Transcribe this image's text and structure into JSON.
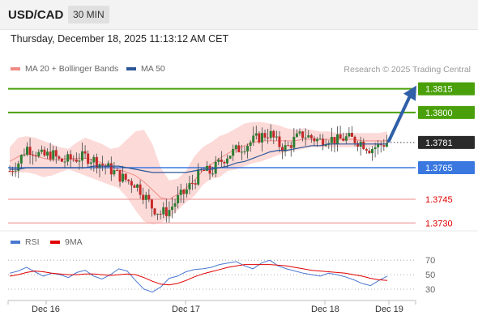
{
  "header": {
    "pair": "USD/CAD",
    "timeframe": "30 MIN"
  },
  "datetime": "Thursday, December 18, 2025 11:13:12 AM CET",
  "legend": [
    {
      "label": "MA 20 + Bollinger Bands",
      "color": "#f28b86"
    },
    {
      "label": "MA 50",
      "color": "#2b5797"
    }
  ],
  "credit": "Research © 2025 Trading Central",
  "rsi_legend": [
    {
      "label": "RSI",
      "color": "#4a78d0"
    },
    {
      "label": "9MA",
      "color": "#e00000"
    }
  ],
  "chart_data": {
    "type": "candlestick",
    "price_axis": {
      "min": 1.3725,
      "max": 1.3822
    },
    "levels": [
      {
        "label": "1.3815",
        "value": 1.3815,
        "role": "target",
        "color": "#4aa00a"
      },
      {
        "label": "1.3800",
        "value": 1.38,
        "role": "resistance",
        "color": "#4aa00a"
      },
      {
        "label": "1.3781",
        "value": 1.3781,
        "role": "last",
        "color": "#222222"
      },
      {
        "label": "1.3765",
        "value": 1.3765,
        "role": "pivot",
        "color": "#3a78e0"
      },
      {
        "label": "1.3745",
        "value": 1.3745,
        "role": "support",
        "color": "#e00000"
      },
      {
        "label": "1.3730",
        "value": 1.373,
        "role": "support",
        "color": "#e00000"
      }
    ],
    "close_path": [
      1.3763,
      1.3768,
      1.3778,
      1.3775,
      1.3772,
      1.3774,
      1.3769,
      1.377,
      1.3771,
      1.3772,
      1.377,
      1.3767,
      1.3764,
      1.376,
      1.3757,
      1.3755,
      1.3748,
      1.374,
      1.3736,
      1.3738,
      1.3745,
      1.375,
      1.3757,
      1.3763,
      1.3762,
      1.3768,
      1.3773,
      1.3776,
      1.3779,
      1.3782,
      1.3785,
      1.3787,
      1.378,
      1.3777,
      1.3783,
      1.3786,
      1.3784,
      1.3782,
      1.3784,
      1.3782,
      1.3784,
      1.3783,
      1.3781,
      1.3777,
      1.3779,
      1.3781
    ],
    "bollinger": {
      "upper": [
        1.3778,
        1.3784,
        1.3785,
        1.3784,
        1.3782,
        1.378,
        1.3778,
        1.3777,
        1.3781,
        1.3784,
        1.3782,
        1.378,
        1.3777,
        1.3778,
        1.3783,
        1.3788,
        1.3789,
        1.378,
        1.3765,
        1.3757,
        1.3758,
        1.3763,
        1.3772,
        1.3778,
        1.3781,
        1.3785,
        1.3787,
        1.379,
        1.3793,
        1.3794,
        1.3794,
        1.3793,
        1.3792,
        1.379,
        1.3789,
        1.379,
        1.3789,
        1.3788,
        1.3788,
        1.3787,
        1.3787,
        1.3787,
        1.3787,
        1.3787,
        1.3787,
        1.3788
      ],
      "lower": [
        1.376,
        1.3762,
        1.3762,
        1.3761,
        1.3759,
        1.376,
        1.3762,
        1.3764,
        1.3762,
        1.376,
        1.3758,
        1.3756,
        1.3754,
        1.3752,
        1.3746,
        1.3738,
        1.3731,
        1.3729,
        1.373,
        1.3733,
        1.3738,
        1.3743,
        1.3747,
        1.3754,
        1.3758,
        1.3759,
        1.3763,
        1.3764,
        1.3766,
        1.3768,
        1.3769,
        1.3771,
        1.3773,
        1.3775,
        1.3776,
        1.3777,
        1.3778,
        1.3778,
        1.3778,
        1.3778,
        1.3778,
        1.3778,
        1.3778,
        1.3778,
        1.3779,
        1.378
      ],
      "ma20": [
        1.3769,
        1.3772,
        1.3774,
        1.3773,
        1.3771,
        1.377,
        1.377,
        1.3771,
        1.3771,
        1.3771,
        1.377,
        1.3768,
        1.3766,
        1.3764,
        1.3762,
        1.376,
        1.3756,
        1.3751,
        1.3746,
        1.3745,
        1.3748,
        1.3752,
        1.3757,
        1.3763,
        1.3767,
        1.3771,
        1.3774,
        1.3777,
        1.3779,
        1.3781,
        1.3782,
        1.3782,
        1.3782,
        1.3782,
        1.3782,
        1.3783,
        1.3783,
        1.3783,
        1.3783,
        1.3783,
        1.3783,
        1.3783,
        1.3782,
        1.3782,
        1.3782,
        1.3782
      ]
    },
    "ma50": [
      1.3764,
      1.3764,
      1.3765,
      1.3765,
      1.3765,
      1.3765,
      1.3765,
      1.3765,
      1.3765,
      1.3765,
      1.3766,
      1.3766,
      1.3766,
      1.3766,
      1.3765,
      1.3764,
      1.3763,
      1.3762,
      1.3762,
      1.3762,
      1.3762,
      1.3762,
      1.3763,
      1.3764,
      1.3764,
      1.3765,
      1.3766,
      1.3768,
      1.3769,
      1.3771,
      1.3773,
      1.3775,
      1.3776,
      1.3776,
      1.3777,
      1.3778,
      1.3779,
      1.3779,
      1.378,
      1.378,
      1.378,
      1.378,
      1.378,
      1.378,
      1.378,
      1.378
    ],
    "forecast_target": 1.3815,
    "rsi_axis": {
      "min": 20,
      "max": 78,
      "ticks": [
        70,
        50,
        30
      ]
    },
    "rsi": [
      52,
      55,
      60,
      54,
      48,
      52,
      50,
      46,
      53,
      56,
      48,
      44,
      50,
      58,
      55,
      42,
      30,
      26,
      33,
      45,
      48,
      54,
      57,
      58,
      60,
      64,
      66,
      68,
      62,
      58,
      66,
      70,
      62,
      58,
      55,
      52,
      50,
      48,
      52,
      50,
      47,
      43,
      38,
      35,
      42,
      48
    ],
    "rsi_ma": [
      48,
      50,
      53,
      55,
      54,
      52,
      51,
      50,
      50,
      51,
      51,
      50,
      49,
      50,
      51,
      50,
      46,
      41,
      37,
      36,
      38,
      42,
      47,
      51,
      54,
      57,
      60,
      62,
      64,
      64,
      64,
      64,
      63,
      62,
      60,
      58,
      56,
      55,
      54,
      53,
      52,
      50,
      48,
      45,
      43,
      42
    ],
    "x_labels": [
      "Dec 16",
      "Dec 17",
      "Dec 18",
      "Dec 19"
    ]
  }
}
